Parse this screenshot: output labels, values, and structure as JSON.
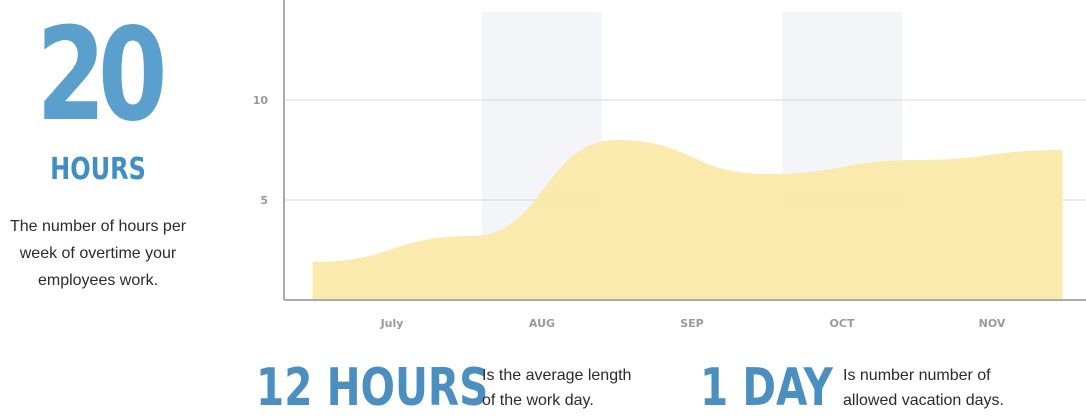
{
  "hero": {
    "number": "20",
    "unit": "HOURS",
    "description": "The number of hours per week of overtime your employees work."
  },
  "stats": [
    {
      "value": "12 HOURS",
      "text_line1": "Is the average length",
      "text_line2": "of the work day."
    },
    {
      "value": "1 DAY",
      "text_line1": "Is number number of",
      "text_line2": "allowed vacation days."
    }
  ],
  "colors": {
    "accent": "#5b9fcd",
    "area_fill": "#fbe8a6",
    "band": "#f3f5f9",
    "grid": "#d4d4d4",
    "tick_text": "#9a9a9a"
  },
  "chart_data": {
    "type": "area",
    "categories": [
      "July",
      "AUG",
      "SEP",
      "OCT",
      "NOV"
    ],
    "x": [
      -0.53,
      0.53,
      1.5,
      2.5,
      3.5,
      4.47
    ],
    "values": [
      1.9,
      3.2,
      8.0,
      6.3,
      7.0,
      7.5
    ],
    "title": "",
    "xlabel": "",
    "ylabel": "",
    "ylim": [
      0,
      15
    ],
    "yticks": [
      5,
      10
    ],
    "grid": true,
    "shaded_categories": [
      "AUG",
      "OCT"
    ]
  }
}
